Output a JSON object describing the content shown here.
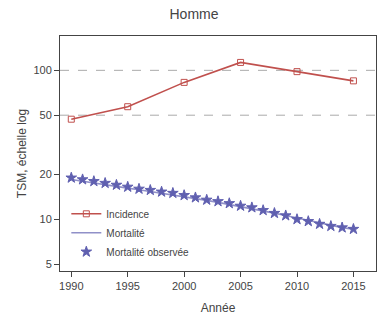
{
  "chart_data": {
    "type": "line",
    "title": "Homme",
    "x_label": "Année",
    "y_label": "TSM, échelle log",
    "log": "y",
    "grid": false,
    "legend": "lower left",
    "xlim": [
      1989,
      2017
    ],
    "xticks": [
      1990,
      1995,
      2000,
      2005,
      2010,
      2015
    ],
    "ylim": [
      4.5,
      170
    ],
    "yticks": [
      5,
      10,
      20,
      50,
      100
    ],
    "hlines": [
      50,
      100
    ],
    "series": [
      {
        "name": "Incidence",
        "color": "#c0504d",
        "marker": "square",
        "line_style": "solid",
        "x": [
          1990,
          1995,
          2000,
          2005,
          2010,
          2015
        ],
        "values": [
          47,
          57,
          83,
          113,
          98,
          85
        ]
      },
      {
        "name": "Mortalité",
        "color": "#9090c8",
        "marker": "none",
        "line_style": "solid",
        "x": [
          1990,
          1991,
          1992,
          1993,
          1994,
          1995,
          1996,
          1997,
          1998,
          1999,
          2000,
          2001,
          2002,
          2003,
          2004,
          2005,
          2006,
          2007,
          2008,
          2009,
          2010,
          2011,
          2012,
          2013,
          2014,
          2015
        ],
        "values": [
          18.5,
          18.0,
          17.5,
          17.0,
          16.5,
          16.2,
          15.8,
          15.4,
          15.0,
          14.6,
          14.2,
          13.8,
          13.4,
          13.0,
          12.6,
          12.2,
          11.8,
          11.4,
          11.0,
          10.6,
          10.2,
          9.8,
          9.4,
          9.1,
          8.8,
          8.6
        ]
      },
      {
        "name": "Mortalité observée",
        "color": "#6060b0",
        "marker": "star",
        "line_style": "none",
        "x": [
          1990,
          1991,
          1992,
          1993,
          1994,
          1995,
          1996,
          1997,
          1998,
          1999,
          2000,
          2001,
          2002,
          2003,
          2004,
          2005,
          2006,
          2007,
          2008,
          2009,
          2010,
          2011,
          2012,
          2013,
          2014,
          2015
        ],
        "values": [
          19.0,
          18.5,
          18.0,
          17.5,
          17.0,
          16.5,
          16.0,
          15.7,
          15.3,
          15.0,
          14.5,
          14.0,
          13.5,
          13.2,
          12.8,
          12.3,
          12.0,
          11.5,
          11.0,
          10.6,
          10.0,
          9.7,
          9.3,
          9.0,
          8.8,
          8.6
        ]
      }
    ]
  }
}
